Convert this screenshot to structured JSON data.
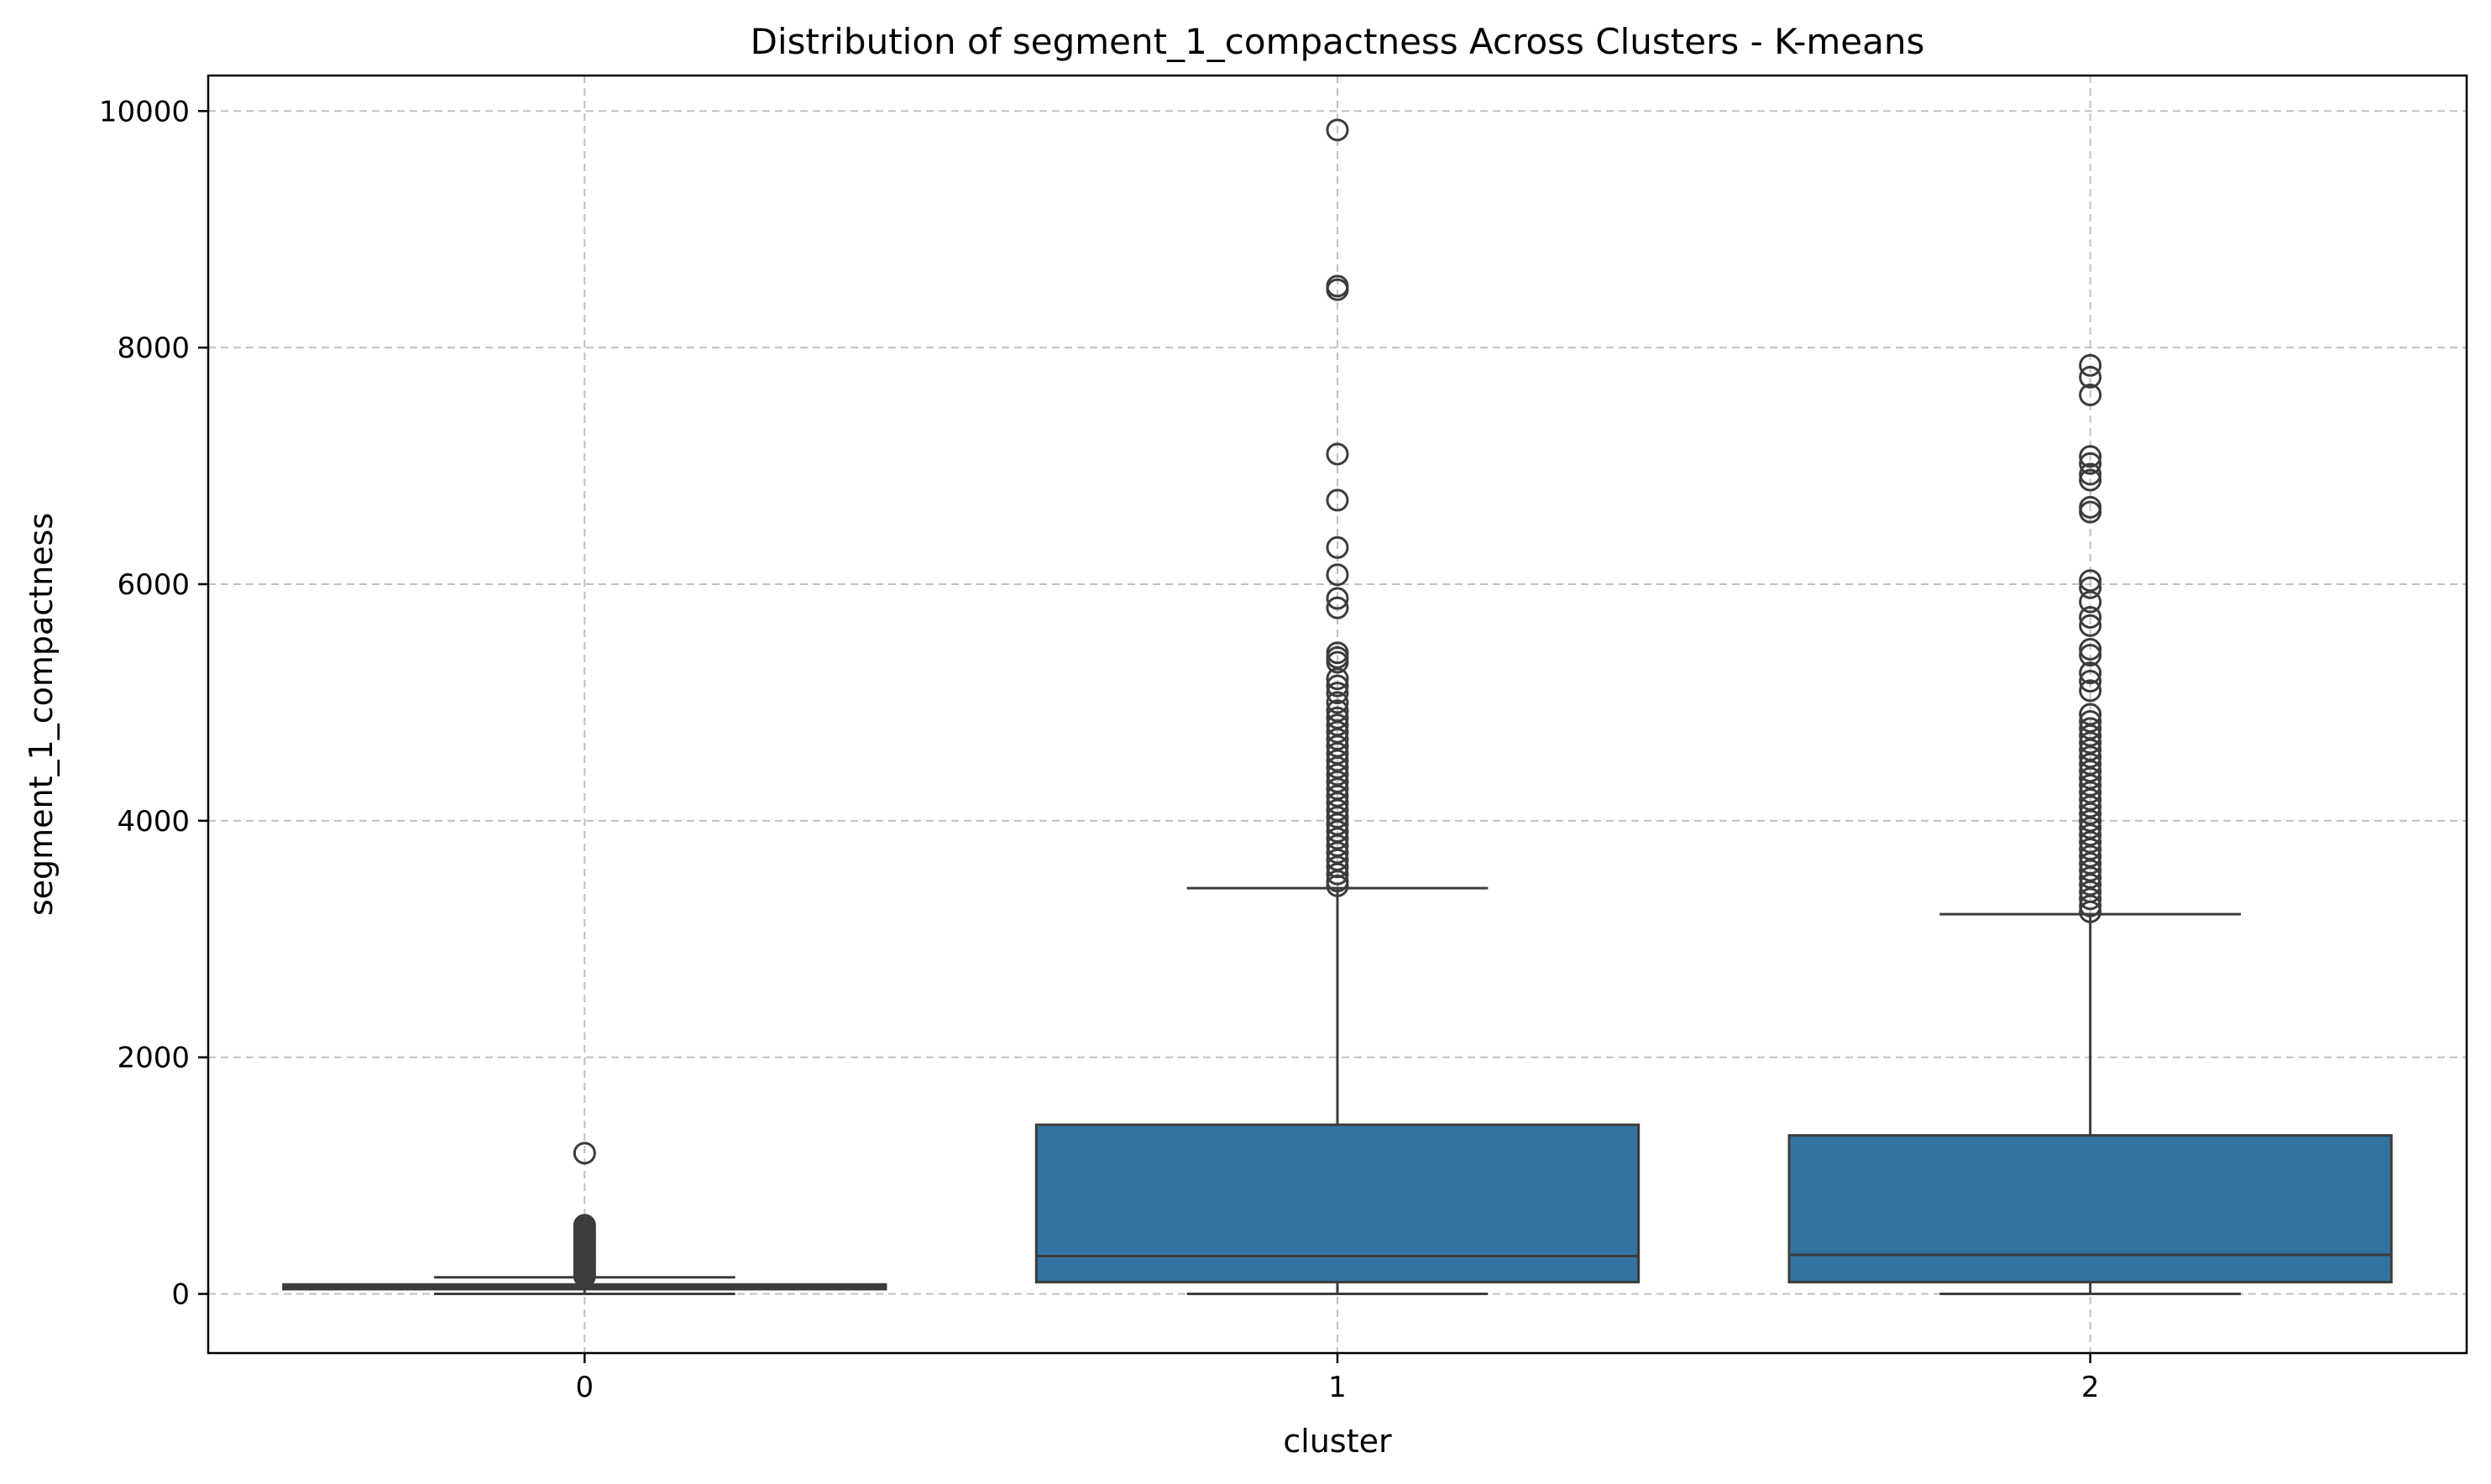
{
  "chart_data": {
    "type": "box",
    "title": "Distribution of segment_1_compactness Across Clusters - K-means",
    "xlabel": "cluster",
    "ylabel": "segment_1_compactness",
    "categories": [
      "0",
      "1",
      "2"
    ],
    "ylim": [
      -500,
      10300
    ],
    "yticks": [
      0,
      2000,
      4000,
      6000,
      8000,
      10000
    ],
    "ytick_labels": [
      "0",
      "2000",
      "4000",
      "6000",
      "8000",
      "10000"
    ],
    "grid": true,
    "box_color": "#3274a1",
    "line_color": "#3c3c3c",
    "boxes": [
      {
        "category": "0",
        "whisker_low": 0,
        "q1": 40,
        "median": 60,
        "q3": 80,
        "whisker_high": 140,
        "outliers": [
          1190,
          580,
          560,
          540,
          520,
          500,
          480,
          460,
          440,
          420,
          400,
          380,
          360,
          340,
          320,
          300,
          280,
          260,
          240,
          220,
          200,
          180,
          160,
          150
        ]
      },
      {
        "category": "1",
        "whisker_low": 0,
        "q1": 100,
        "median": 320,
        "q3": 1430,
        "whisker_high": 3430,
        "outliers": [
          9840,
          8520,
          8490,
          7100,
          6710,
          6310,
          6080,
          5880,
          5800,
          5420,
          5380,
          5340,
          5200,
          5140,
          5080,
          5000,
          4930,
          4870,
          4810,
          4750,
          4690,
          4630,
          4570,
          4510,
          4450,
          4390,
          4330,
          4270,
          4210,
          4150,
          4090,
          4030,
          3970,
          3910,
          3850,
          3790,
          3730,
          3670,
          3610,
          3550,
          3490,
          3450
        ]
      },
      {
        "category": "2",
        "whisker_low": 0,
        "q1": 100,
        "median": 330,
        "q3": 1340,
        "whisker_high": 3210,
        "outliers": [
          7850,
          7750,
          7600,
          7080,
          7020,
          6930,
          6880,
          6650,
          6610,
          6030,
          5970,
          5850,
          5720,
          5650,
          5450,
          5400,
          5250,
          5180,
          5100,
          4900,
          4840,
          4780,
          4720,
          4660,
          4600,
          4540,
          4480,
          4420,
          4360,
          4300,
          4240,
          4180,
          4120,
          4060,
          4000,
          3940,
          3880,
          3820,
          3760,
          3700,
          3640,
          3580,
          3520,
          3460,
          3400,
          3340,
          3280,
          3230
        ]
      }
    ]
  }
}
